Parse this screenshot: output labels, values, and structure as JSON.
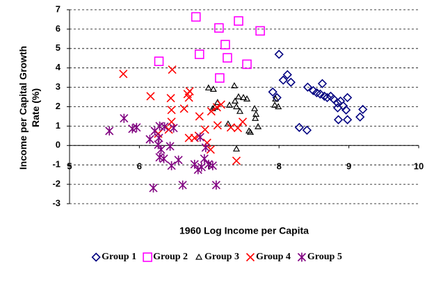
{
  "chart_data": {
    "type": "scatter",
    "x_label": "1960 Log Income per Capita",
    "y_label": "Income per Capital Growth Rate (%)",
    "xlim": [
      5,
      10
    ],
    "xticks": [
      5,
      6,
      7,
      8,
      9,
      10
    ],
    "ylim": [
      -3,
      7
    ],
    "yticks": [
      -3,
      -2,
      -1,
      0,
      1,
      2,
      3,
      4,
      5,
      6,
      7
    ],
    "grid": true,
    "legend": "bottom",
    "series": [
      {
        "name": "Group 1",
        "color": "#000080",
        "marker": "diamond",
        "x": [
          8.0,
          8.06,
          8.12,
          8.17,
          7.91,
          7.97,
          8.41,
          8.49,
          8.54,
          8.59,
          8.62,
          8.65,
          8.69,
          8.74,
          8.78,
          8.84,
          8.88,
          8.92,
          8.96,
          8.98,
          8.84,
          8.85,
          8.98,
          9.16,
          9.2,
          8.29,
          8.4
        ],
        "values": [
          4.7,
          3.37,
          3.65,
          3.26,
          2.76,
          2.47,
          3.01,
          2.83,
          2.72,
          2.65,
          3.19,
          2.54,
          2.47,
          2.54,
          2.4,
          2.19,
          2.29,
          2.04,
          1.83,
          2.47,
          1.94,
          1.33,
          1.33,
          1.47,
          1.86,
          0.93,
          0.79
        ]
      },
      {
        "name": "Group 2",
        "color": "#ff00ff",
        "marker": "square",
        "x": [
          6.28,
          6.81,
          6.86,
          7.14,
          7.42,
          7.73,
          7.23,
          7.26,
          7.54,
          7.15
        ],
        "values": [
          4.34,
          6.63,
          4.7,
          6.06,
          6.42,
          5.91,
          5.2,
          4.52,
          4.19,
          3.48
        ]
      },
      {
        "name": "Group 3",
        "color": "#000000",
        "marker": "triangle",
        "x": [
          6.99,
          7.06,
          7.05,
          7.12,
          7.08,
          7.29,
          7.27,
          7.36,
          7.37,
          7.42,
          7.49,
          7.54,
          7.39,
          7.44,
          7.59,
          7.57,
          7.65,
          7.66,
          7.7,
          7.67,
          7.39,
          7.94,
          7.99,
          7.95
        ],
        "values": [
          2.97,
          2.9,
          1.9,
          2.22,
          1.97,
          2.08,
          1.11,
          3.08,
          2.29,
          2.51,
          2.47,
          2.4,
          2.0,
          1.76,
          0.68,
          0.75,
          1.9,
          1.4,
          0.97,
          1.61,
          -0.18,
          2.08,
          2.0,
          2.4
        ]
      },
      {
        "name": "Group 4",
        "color": "#ff0000",
        "marker": "x",
        "x": [
          5.77,
          6.16,
          6.47,
          6.45,
          6.46,
          6.46,
          6.42,
          6.27,
          6.64,
          6.69,
          6.72,
          6.71,
          6.71,
          6.79,
          6.85,
          6.86,
          6.94,
          6.97,
          7.03,
          7.02,
          7.12,
          7.11,
          7.17,
          7.31,
          7.41,
          7.48,
          7.39
        ],
        "values": [
          3.69,
          2.54,
          3.91,
          2.44,
          1.83,
          1.22,
          0.82,
          0.61,
          1.9,
          2.65,
          2.8,
          2.47,
          0.39,
          0.39,
          0.5,
          1.5,
          0.82,
          0.14,
          1.76,
          -0.21,
          1.04,
          1.97,
          2.11,
          0.93,
          0.9,
          1.22,
          -0.79
        ]
      },
      {
        "name": "Group 5",
        "color": "#800080",
        "marker": "star",
        "x": [
          5.57,
          5.78,
          5.9,
          5.96,
          6.15,
          6.22,
          6.28,
          6.27,
          6.31,
          6.29,
          6.35,
          6.36,
          6.29,
          6.49,
          6.44,
          6.56,
          6.46,
          6.62,
          6.2,
          6.79,
          6.84,
          6.89,
          6.87,
          6.95,
          6.99,
          7.05,
          7.1,
          6.93
        ],
        "values": [
          0.75,
          1.4,
          0.86,
          0.93,
          0.32,
          0.75,
          0.39,
          0.04,
          -0.21,
          -0.61,
          -0.68,
          0.97,
          1.0,
          0.9,
          -0.04,
          -0.75,
          -1.04,
          -2.04,
          -2.19,
          -0.97,
          -1.25,
          -1.11,
          0.43,
          -0.11,
          -0.97,
          -1.04,
          -2.04,
          -0.68
        ]
      }
    ]
  }
}
